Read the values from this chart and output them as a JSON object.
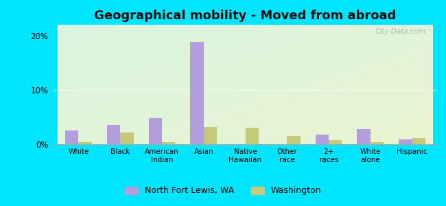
{
  "title": "Geographical mobility - Moved from abroad",
  "categories": [
    "White",
    "Black",
    "American\nIndian",
    "Asian",
    "Native\nHawaiian",
    "Other\nrace",
    "2+\nraces",
    "White\nalone",
    "Hispanic"
  ],
  "nfl_values": [
    2.5,
    3.5,
    4.8,
    18.8,
    0.0,
    0.0,
    1.8,
    2.8,
    0.9
  ],
  "wa_values": [
    0.4,
    2.2,
    0.4,
    3.2,
    3.0,
    1.5,
    0.7,
    0.4,
    1.2
  ],
  "nfl_color": "#b39ddb",
  "wa_color": "#c5c97a",
  "ylim": [
    0,
    22
  ],
  "yticks": [
    0,
    10,
    20
  ],
  "ytick_labels": [
    "0%",
    "10%",
    "20%"
  ],
  "bg_top_left": "#d4ede0",
  "bg_top_right": "#e8f5e9",
  "bg_bottom_left": "#d8edce",
  "bg_bottom_right": "#f0f5d8",
  "outer_bg": "#00e5ff",
  "legend_nfl": "North Fort Lewis, WA",
  "legend_wa": "Washington",
  "bar_width": 0.32,
  "watermark": "City-Data.com",
  "title_fontsize": 13
}
